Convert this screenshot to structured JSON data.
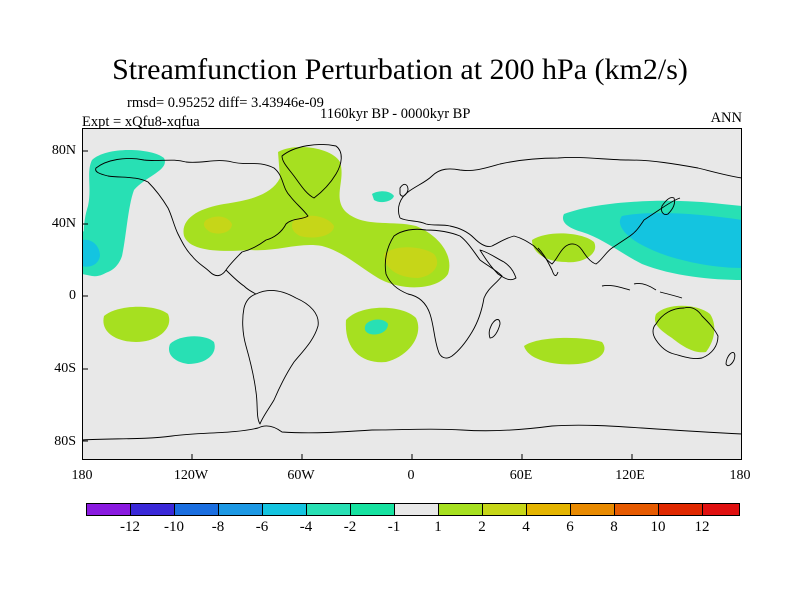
{
  "title": "Streamfunction Perturbation at 200 hPa (km2/s)",
  "stats": "rmsd= 0.95252 diff= 3.43946e-09",
  "experiment": "Expt = xQfu8-xqfua",
  "period": "1160kyr BP - 0000kyr BP",
  "season": "ANN",
  "axes": {
    "lat_ticks": [
      "80N",
      "40N",
      "0",
      "40S",
      "80S"
    ],
    "lon_ticks": [
      "180",
      "120W",
      "60W",
      "0",
      "60E",
      "120E",
      "180"
    ]
  },
  "colorbar": {
    "labels": [
      "-12",
      "-10",
      "-8",
      "-6",
      "-4",
      "-2",
      "-1",
      "1",
      "2",
      "4",
      "6",
      "8",
      "10",
      "12"
    ],
    "colors": [
      "#8a1ae0",
      "#3a28d8",
      "#1a6ee0",
      "#1c98e4",
      "#14c4e0",
      "#28e0b4",
      "#16e2a0",
      "#e8e8e8",
      "#a6e020",
      "#c6d618",
      "#e4b400",
      "#e88a00",
      "#e65a00",
      "#e02800",
      "#e01010"
    ]
  },
  "palette": {
    "background": "#e8e8e8",
    "coast": "#000000"
  }
}
